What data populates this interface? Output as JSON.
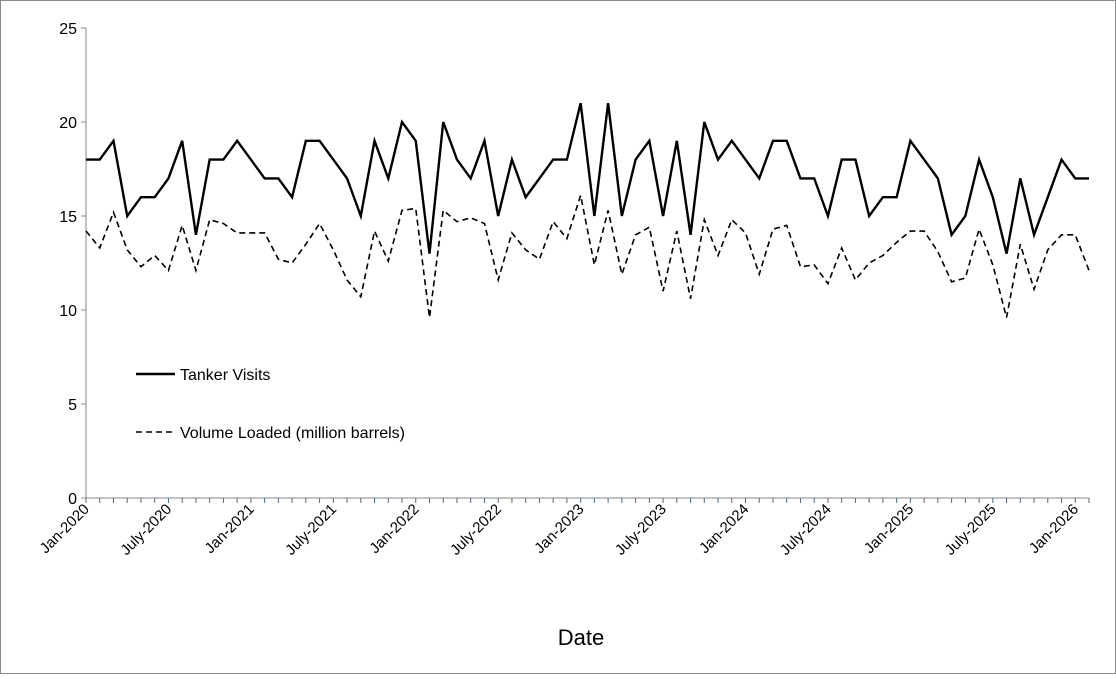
{
  "chart_data": {
    "type": "line",
    "title": "",
    "xlabel": "Date",
    "ylabel": "",
    "ylim": [
      0,
      25
    ],
    "yticks": [
      0,
      5,
      10,
      15,
      20,
      25
    ],
    "x_start": "Jan-2020",
    "x_end": "Jan-2026",
    "x_tick_labels": [
      "Jan-2020",
      "July-2020",
      "Jan-2021",
      "July-2021",
      "Jan-2022",
      "July-2022",
      "Jan-2023",
      "July-2023",
      "Jan-2024",
      "July-2024",
      "Jan-2025",
      "July-2025",
      "Jan-2026"
    ],
    "grid": false,
    "legend": "inside-left",
    "series": [
      {
        "name": "Tanker Visits",
        "style": "solid",
        "color": "#000000",
        "values": [
          18,
          18,
          19,
          15,
          16,
          16,
          17,
          19,
          14,
          18,
          18,
          19,
          18,
          17,
          17,
          16,
          19,
          19,
          18,
          17,
          15,
          19,
          17,
          20,
          19,
          13,
          20,
          18,
          17,
          19,
          15,
          18,
          16,
          17,
          18,
          18,
          21,
          15,
          21,
          15,
          18,
          19,
          15,
          19,
          14,
          20,
          18,
          19,
          18,
          17,
          19,
          19,
          17,
          17,
          15,
          18,
          18,
          15,
          16,
          16,
          19,
          18,
          17,
          14,
          15,
          18,
          16,
          13,
          17,
          14,
          16,
          18,
          17,
          17
        ]
      },
      {
        "name": "Volume Loaded (million barrels)",
        "style": "dashed",
        "color": "#000000",
        "values": [
          14.2,
          13.3,
          15.2,
          13.2,
          12.3,
          12.9,
          12.1,
          14.5,
          12.1,
          14.8,
          14.6,
          14.1,
          14.1,
          14.1,
          12.7,
          12.5,
          13.5,
          14.6,
          13.2,
          11.6,
          10.7,
          14.2,
          12.6,
          15.3,
          15.4,
          9.6,
          15.3,
          14.7,
          14.9,
          14.6,
          11.6,
          14.1,
          13.2,
          12.7,
          14.7,
          13.8,
          16.1,
          12.4,
          15.3,
          11.9,
          14.0,
          14.4,
          11.0,
          14.2,
          10.6,
          14.8,
          12.9,
          14.8,
          14.1,
          11.9,
          14.3,
          14.5,
          12.3,
          12.4,
          11.4,
          13.3,
          11.6,
          12.5,
          12.9,
          13.6,
          14.2,
          14.2,
          13.1,
          11.5,
          11.7,
          14.3,
          12.4,
          9.6,
          13.5,
          11.1,
          13.2,
          14.0,
          14.0,
          12.1
        ]
      }
    ]
  }
}
